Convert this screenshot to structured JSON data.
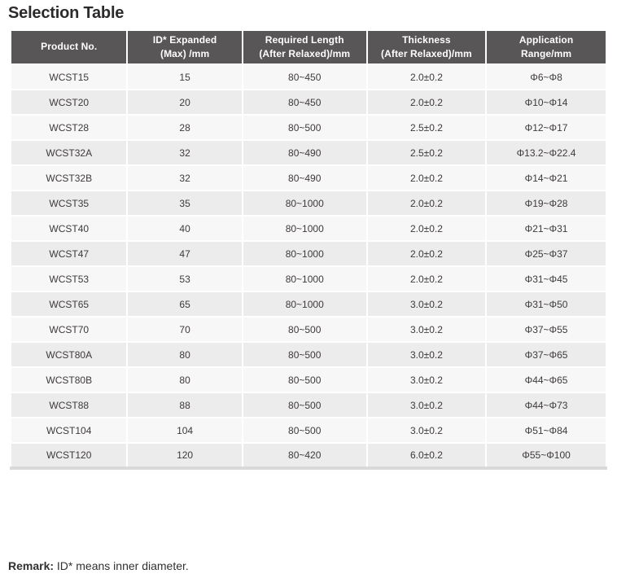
{
  "title": "Selection Table",
  "table": {
    "headers": [
      "Product No.",
      "ID* Expanded\n(Max) /mm",
      "Required Length\n(After Relaxed)/mm",
      "Thickness\n(After Relaxed)/mm",
      "Application\nRange/mm"
    ],
    "rows": [
      [
        "WCST15",
        "15",
        "80~450",
        "2.0±0.2",
        "Φ6~Φ8"
      ],
      [
        "WCST20",
        "20",
        "80~450",
        "2.0±0.2",
        "Φ10~Φ14"
      ],
      [
        "WCST28",
        "28",
        "80~500",
        "2.5±0.2",
        "Φ12~Φ17"
      ],
      [
        "WCST32A",
        "32",
        "80~490",
        "2.5±0.2",
        "Φ13.2~Φ22.4"
      ],
      [
        "WCST32B",
        "32",
        "80~490",
        "2.0±0.2",
        "Φ14~Φ21"
      ],
      [
        "WCST35",
        "35",
        "80~1000",
        "2.0±0.2",
        "Φ19~Φ28"
      ],
      [
        "WCST40",
        "40",
        "80~1000",
        "2.0±0.2",
        "Φ21~Φ31"
      ],
      [
        "WCST47",
        "47",
        "80~1000",
        "2.0±0.2",
        "Φ25~Φ37"
      ],
      [
        "WCST53",
        "53",
        "80~1000",
        "2.0±0.2",
        "Φ31~Φ45"
      ],
      [
        "WCST65",
        "65",
        "80~1000",
        "3.0±0.2",
        "Φ31~Φ50"
      ],
      [
        "WCST70",
        "70",
        "80~500",
        "3.0±0.2",
        "Φ37~Φ55"
      ],
      [
        "WCST80A",
        "80",
        "80~500",
        "3.0±0.2",
        "Φ37~Φ65"
      ],
      [
        "WCST80B",
        "80",
        "80~500",
        "3.0±0.2",
        "Φ44~Φ65"
      ],
      [
        "WCST88",
        "88",
        "80~500",
        "3.0±0.2",
        "Φ44~Φ73"
      ],
      [
        "WCST104",
        "104",
        "80~500",
        "3.0±0.2",
        "Φ51~Φ84"
      ],
      [
        "WCST120",
        "120",
        "80~420",
        "6.0±0.2",
        "Φ55~Φ100"
      ]
    ]
  },
  "remark": {
    "label": "Remark:",
    "text": " ID* means inner diameter."
  },
  "colors": {
    "header_bg": "#595657",
    "row_odd": "#f7f7f7",
    "row_even": "#ececec",
    "body_text": "#3e3a39",
    "bottom_border": "#d9d9d9"
  }
}
